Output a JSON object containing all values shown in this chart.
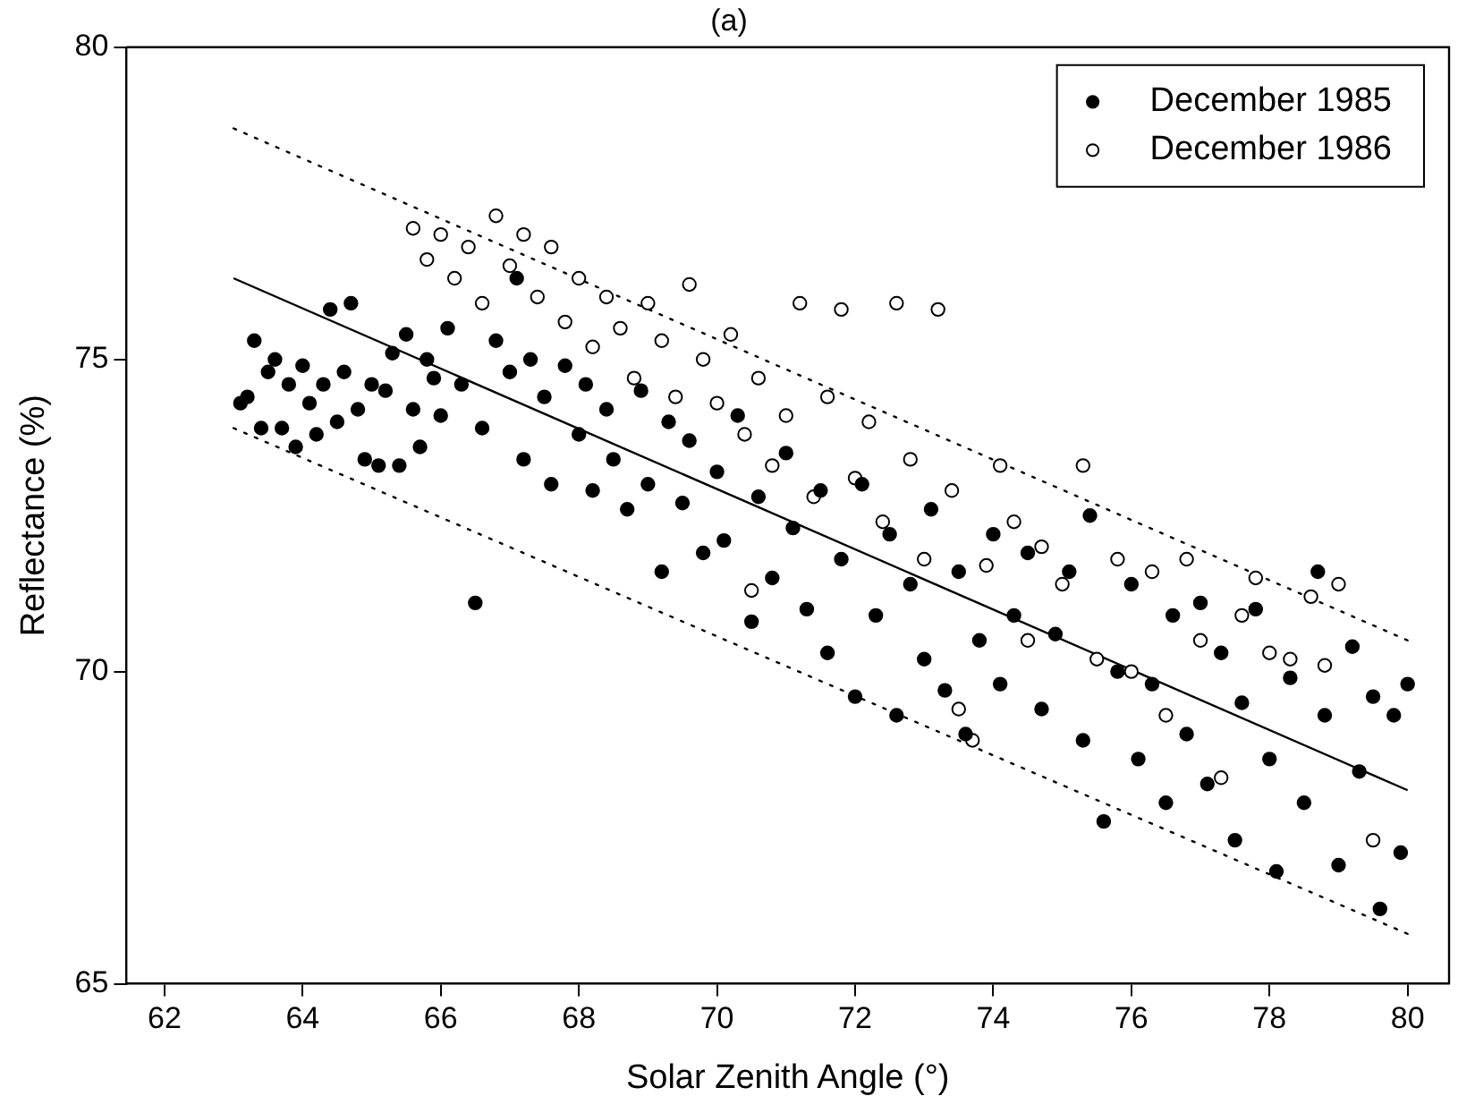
{
  "chart_data": {
    "type": "scatter",
    "title": "(a)",
    "xlabel": "Solar Zenith Angle (°)",
    "ylabel": "Reflectance (%)",
    "xlim": [
      61.45,
      80.6
    ],
    "xticks": [
      62,
      64,
      66,
      68,
      70,
      72,
      74,
      76,
      78,
      80
    ],
    "ylim": [
      65,
      80
    ],
    "yticks": [
      65,
      70,
      75,
      80
    ],
    "grid": false,
    "legend": "top right",
    "marker": "circle",
    "series": [
      {
        "name": "December 1985",
        "color": "#000000",
        "x": [
          63.1,
          63.2,
          63.3,
          63.4,
          63.5,
          63.6,
          63.7,
          63.8,
          63.9,
          64.0,
          64.1,
          64.2,
          64.3,
          64.4,
          64.5,
          64.6,
          64.7,
          64.8,
          64.9,
          65.0,
          65.1,
          65.2,
          65.3,
          65.4,
          65.5,
          65.6,
          65.7,
          65.8,
          65.9,
          66.0,
          66.1,
          66.3,
          66.5,
          66.6,
          66.8,
          67.0,
          67.1,
          67.2,
          67.3,
          67.5,
          67.6,
          67.8,
          68.0,
          68.1,
          68.2,
          68.4,
          68.5,
          68.7,
          68.9,
          69.0,
          69.2,
          69.3,
          69.5,
          69.6,
          69.8,
          70.0,
          70.1,
          70.3,
          70.5,
          70.6,
          70.8,
          71.0,
          71.1,
          71.3,
          71.5,
          71.6,
          71.8,
          72.0,
          72.1,
          72.3,
          72.5,
          72.6,
          72.8,
          73.0,
          73.1,
          73.3,
          73.5,
          73.6,
          73.8,
          74.0,
          74.1,
          74.3,
          74.5,
          74.7,
          74.9,
          75.1,
          75.3,
          75.4,
          75.6,
          75.8,
          76.0,
          76.1,
          76.3,
          76.5,
          76.6,
          76.8,
          77.0,
          77.1,
          77.3,
          77.5,
          77.6,
          77.8,
          78.0,
          78.1,
          78.3,
          78.5,
          78.7,
          78.8,
          79.0,
          79.2,
          79.3,
          79.5,
          79.6,
          79.8,
          79.9,
          80.0
        ],
        "values": [
          74.3,
          74.4,
          75.3,
          73.9,
          74.8,
          75.0,
          73.9,
          74.6,
          73.6,
          74.9,
          74.3,
          73.8,
          74.6,
          75.8,
          74.0,
          74.8,
          75.9,
          74.2,
          73.4,
          74.6,
          73.3,
          74.5,
          75.1,
          73.3,
          75.4,
          74.2,
          73.6,
          75.0,
          74.7,
          74.1,
          75.5,
          74.6,
          71.1,
          73.9,
          75.3,
          74.8,
          76.3,
          73.4,
          75.0,
          74.4,
          73.0,
          74.9,
          73.8,
          74.6,
          72.9,
          74.2,
          73.4,
          72.6,
          74.5,
          73.0,
          71.6,
          74.0,
          72.7,
          73.7,
          71.9,
          73.2,
          72.1,
          74.1,
          70.8,
          72.8,
          71.5,
          73.5,
          72.3,
          71.0,
          72.9,
          70.3,
          71.8,
          69.6,
          73.0,
          70.9,
          72.2,
          69.3,
          71.4,
          70.2,
          72.6,
          69.7,
          71.6,
          69.0,
          70.5,
          72.2,
          69.8,
          70.9,
          71.9,
          69.4,
          70.6,
          71.6,
          68.9,
          72.5,
          67.6,
          70.0,
          71.4,
          68.6,
          69.8,
          67.9,
          70.9,
          69.0,
          71.1,
          68.2,
          70.3,
          67.3,
          69.5,
          71.0,
          68.6,
          66.8,
          69.9,
          67.9,
          71.6,
          69.3,
          66.9,
          70.4,
          68.4,
          69.6,
          66.2,
          69.3,
          67.1,
          69.8
        ]
      },
      {
        "name": "December 1986",
        "color": "#ffffff",
        "x": [
          65.6,
          65.8,
          66.0,
          66.2,
          66.4,
          66.6,
          66.8,
          67.0,
          67.2,
          67.4,
          67.6,
          67.8,
          68.0,
          68.2,
          68.4,
          68.6,
          68.8,
          69.0,
          69.2,
          69.4,
          69.6,
          69.8,
          70.0,
          70.2,
          70.4,
          70.5,
          70.6,
          70.8,
          71.0,
          71.2,
          71.4,
          71.6,
          71.8,
          72.0,
          72.2,
          72.4,
          72.6,
          72.8,
          73.0,
          73.2,
          73.4,
          73.5,
          73.7,
          73.9,
          74.1,
          74.3,
          74.5,
          74.7,
          75.0,
          75.3,
          75.5,
          75.8,
          76.0,
          76.3,
          76.5,
          76.8,
          77.0,
          77.3,
          77.6,
          77.8,
          78.0,
          78.3,
          78.6,
          78.8,
          79.0,
          79.5
        ],
        "values": [
          77.1,
          76.6,
          77.0,
          76.3,
          76.8,
          75.9,
          77.3,
          76.5,
          77.0,
          76.0,
          76.8,
          75.6,
          76.3,
          75.2,
          76.0,
          75.5,
          74.7,
          75.9,
          75.3,
          74.4,
          76.2,
          75.0,
          74.3,
          75.4,
          73.8,
          71.3,
          74.7,
          73.3,
          74.1,
          75.9,
          72.8,
          74.4,
          75.8,
          73.1,
          74.0,
          72.4,
          75.9,
          73.4,
          71.8,
          75.8,
          72.9,
          69.4,
          68.9,
          71.7,
          73.3,
          72.4,
          70.5,
          72.0,
          71.4,
          73.3,
          70.2,
          71.8,
          70.0,
          71.6,
          69.3,
          71.8,
          70.5,
          68.3,
          70.9,
          71.5,
          70.3,
          70.2,
          71.2,
          70.1,
          71.4,
          67.3
        ]
      },
      {
        "type": "line",
        "color": "#000000",
        "marker": "none",
        "line_style": "solid",
        "x": [
          63.0,
          80.0
        ],
        "values": [
          76.3,
          68.1
        ]
      },
      {
        "type": "line",
        "color": "#000000",
        "marker": "none",
        "line_style": "dotted",
        "x": [
          63.0,
          80.0
        ],
        "values": [
          78.7,
          70.5
        ]
      },
      {
        "type": "line",
        "color": "#000000",
        "marker": "none",
        "line_style": "dotted",
        "x": [
          63.0,
          80.0
        ],
        "values": [
          73.9,
          65.8
        ]
      }
    ]
  }
}
